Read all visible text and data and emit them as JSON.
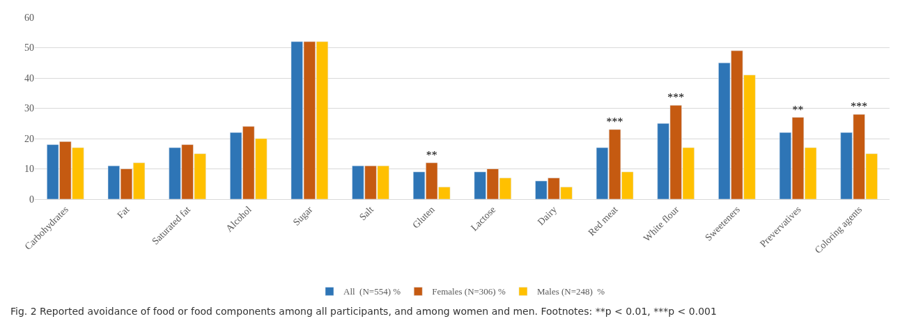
{
  "chart_data": {
    "type": "bar",
    "categories": [
      "Carbohydrates",
      "Fat",
      "Saturated fat",
      "Alcohol",
      "Sugar",
      "Salt",
      "Gluten",
      "Lactose",
      "Dairy",
      "Red meat",
      "White flour",
      "Sweeteners",
      "Prevervatives",
      "Coloring agents"
    ],
    "series": [
      {
        "name": "All  (N=554) %",
        "color": "#2e75b6",
        "values": [
          18,
          11,
          17,
          22,
          52,
          11,
          9,
          9,
          6,
          17,
          25,
          45,
          22,
          22
        ]
      },
      {
        "name": "Females (N=306) %",
        "color": "#c55a11",
        "values": [
          19,
          10,
          18,
          24,
          52,
          11,
          12,
          10,
          7,
          23,
          31,
          49,
          27,
          28
        ],
        "value_labels": [
          null,
          null,
          null,
          null,
          null,
          null,
          "**",
          null,
          null,
          "***",
          "***",
          null,
          "**",
          "***"
        ]
      },
      {
        "name": "Males (N=248)  %",
        "color": "#ffc000",
        "values": [
          17,
          12,
          15,
          20,
          52,
          11,
          4,
          7,
          4,
          9,
          17,
          41,
          17,
          15
        ]
      }
    ],
    "ylim": [
      0,
      60
    ],
    "yticks": [
      0,
      10,
      20,
      30,
      40,
      50,
      60
    ],
    "grid": "y",
    "legend": "bottom",
    "annotations": [
      "Fig. 2 Reported avoidance of food or food components among all participants, and among women and men. Footnotes: **p < 0.01, ***p < 0.001"
    ]
  }
}
